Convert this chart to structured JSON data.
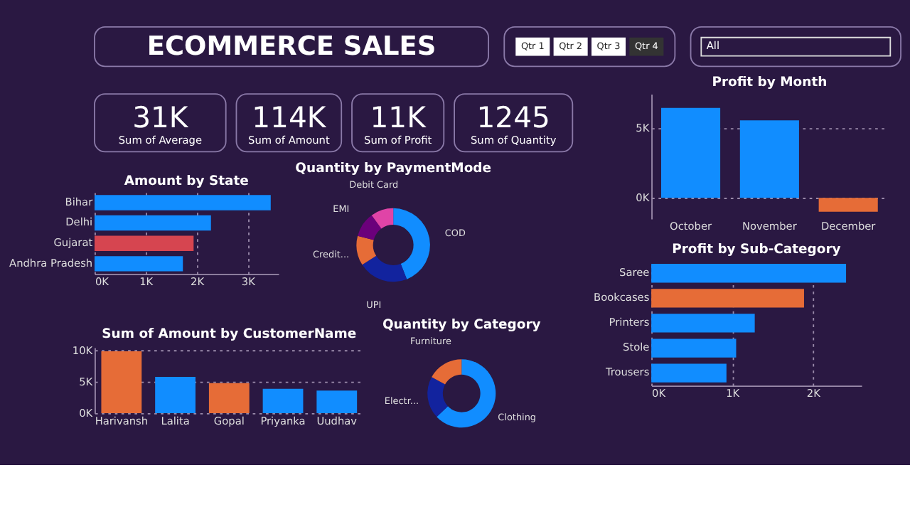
{
  "chart_data": [
    {
      "type": "other",
      "title": "ECOMMERCE SALES"
    },
    {
      "type": "other",
      "categories": [
        "Qtr 1",
        "Qtr 2",
        "Qtr 3",
        "Qtr 4"
      ],
      "colors": [
        "#ffffff",
        "#ffffff",
        "#ffffff",
        "#333333"
      ]
    },
    {
      "type": "other",
      "annotations": [
        "All"
      ]
    },
    {
      "type": "other",
      "annotations": [
        "31K",
        "Sum of Average"
      ]
    },
    {
      "type": "other",
      "annotations": [
        "114K",
        "Sum of Amount"
      ]
    },
    {
      "type": "other",
      "annotations": [
        "11K",
        "Sum of Profit"
      ]
    },
    {
      "type": "other",
      "annotations": [
        "1245",
        "Sum of Quantity"
      ]
    },
    {
      "type": "bar",
      "title": "Profit by Month",
      "categories": [
        "October",
        "November",
        "December"
      ],
      "values": [
        6500,
        5600,
        -1000
      ],
      "colors": [
        "#118dff",
        "#118dff",
        "#e66c37"
      ],
      "ylim": [
        -1500,
        7500
      ],
      "yticks": [
        {
          "value": 0,
          "label": "0K"
        },
        {
          "value": 5000,
          "label": "5K"
        }
      ],
      "grid": "y"
    },
    {
      "type": "bar",
      "title": "Amount by State",
      "orientation": "horizontal",
      "categories": [
        "Bihar",
        "Delhi",
        "Gujarat",
        "Andhra Pradesh"
      ],
      "values": [
        3450,
        2280,
        1940,
        1730
      ],
      "colors": [
        "#118dff",
        "#118dff",
        "#d64550",
        "#118dff"
      ],
      "xlim": [
        0,
        3600
      ],
      "xticks": [
        {
          "value": 0,
          "label": "0K"
        },
        {
          "value": 1000,
          "label": "1K"
        },
        {
          "value": 2000,
          "label": "2K"
        },
        {
          "value": 3000,
          "label": "3K"
        }
      ],
      "grid": "x"
    },
    {
      "type": "donut",
      "title": "Quantity by PaymentMode",
      "categories": [
        "COD",
        "UPI",
        "Credit...",
        "EMI",
        "Debit Card"
      ],
      "values": [
        44,
        22,
        13,
        11,
        10
      ],
      "colors": [
        "#118dff",
        "#12239e",
        "#e66c37",
        "#6b007b",
        "#e044a7"
      ]
    },
    {
      "type": "bar",
      "title": "Profit by Sub-Category",
      "orientation": "horizontal",
      "categories": [
        "Saree",
        "Bookcases",
        "Printers",
        "Stole",
        "Trousers"
      ],
      "values": [
        2410,
        1890,
        1280,
        1050,
        930
      ],
      "colors": [
        "#118dff",
        "#e66c37",
        "#118dff",
        "#118dff",
        "#118dff"
      ],
      "xlim": [
        0,
        2600
      ],
      "xticks": [
        {
          "value": 0,
          "label": "0K"
        },
        {
          "value": 1000,
          "label": "1K"
        },
        {
          "value": 2000,
          "label": "2K"
        }
      ],
      "grid": "x"
    },
    {
      "type": "donut",
      "title": "Quantity by Category",
      "categories": [
        "Clothing",
        "Electr...",
        "Furniture"
      ],
      "values": [
        63,
        20,
        17
      ],
      "colors": [
        "#118dff",
        "#12239e",
        "#e66c37"
      ]
    },
    {
      "type": "bar",
      "title": "Sum of Amount by CustomerName",
      "categories": [
        "Harivansh",
        "Lalita",
        "Gopal",
        "Priyanka",
        "Uudhav"
      ],
      "values": [
        9900,
        5800,
        4800,
        3900,
        3600
      ],
      "colors": [
        "#e66c37",
        "#118dff",
        "#e66c37",
        "#118dff",
        "#118dff"
      ],
      "ylim": [
        0,
        10500
      ],
      "yticks": [
        {
          "value": 0,
          "label": "0K"
        },
        {
          "value": 5000,
          "label": "5K"
        },
        {
          "value": 10000,
          "label": "10K"
        }
      ],
      "grid": "y"
    }
  ]
}
